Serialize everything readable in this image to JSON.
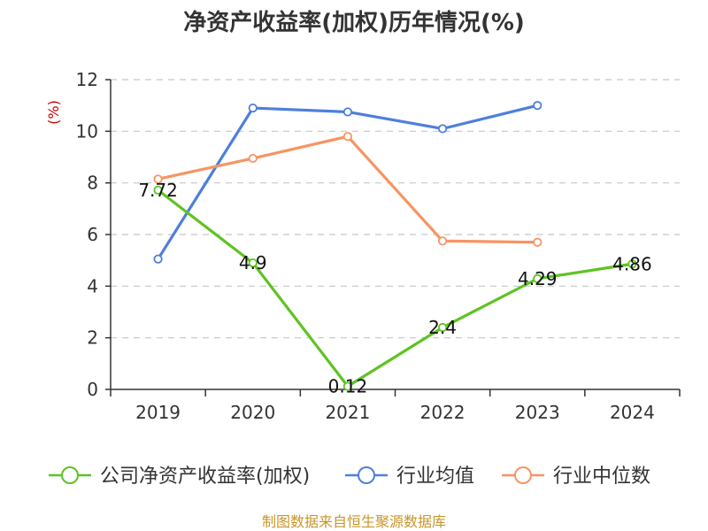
{
  "chart_data": {
    "type": "line",
    "title": "净资产收益率(加权)历年情况(%)",
    "ylabel": "(%)",
    "xlabel": "",
    "categories": [
      "2019",
      "2020",
      "2021",
      "2022",
      "2023",
      "2024"
    ],
    "ylim": [
      0,
      12
    ],
    "yticks": [
      0,
      2,
      4,
      6,
      8,
      10,
      12
    ],
    "grid": true,
    "legend_position": "bottom",
    "series": [
      {
        "name": "公司净资产收益率(加权)",
        "color": "#5ec322",
        "values": [
          7.72,
          4.9,
          0.12,
          2.4,
          4.29,
          4.86
        ],
        "labels": [
          "7.72",
          "4.9",
          "0.12",
          "2.4",
          "4.29",
          "4.86"
        ]
      },
      {
        "name": "行业均值",
        "color": "#4e7fdb",
        "values": [
          5.05,
          10.9,
          10.75,
          10.1,
          11.0,
          null
        ]
      },
      {
        "name": "行业中位数",
        "color": "#f79463",
        "values": [
          8.15,
          8.95,
          9.8,
          5.75,
          5.7,
          null
        ]
      }
    ],
    "source": "制图数据来自恒生聚源数据库"
  }
}
